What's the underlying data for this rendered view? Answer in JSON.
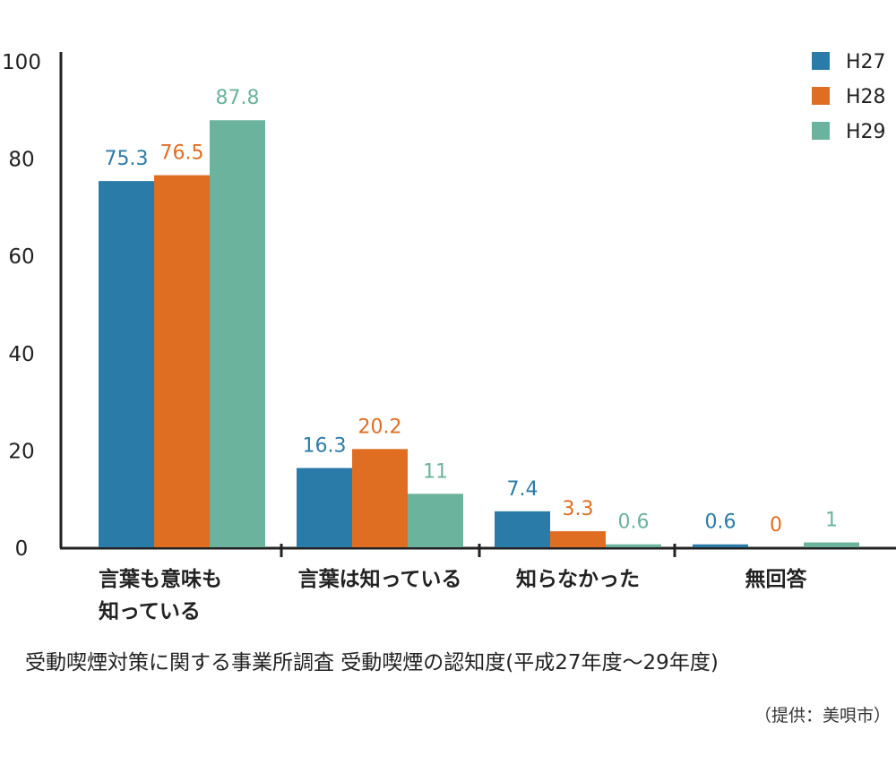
{
  "chart_data": {
    "type": "bar",
    "title": "",
    "xlabel": "",
    "ylabel": "",
    "ylim": [
      0,
      100
    ],
    "yticks": [
      0,
      20,
      40,
      60,
      80,
      100
    ],
    "categories": [
      "言葉も意味も知っている",
      "言葉は知っている",
      "知らなかった",
      "無回答"
    ],
    "category_lines": [
      [
        "言葉も意味も",
        "知っている"
      ],
      [
        "言葉は知っている"
      ],
      [
        "知らなかった"
      ],
      [
        "無回答"
      ]
    ],
    "series": [
      {
        "name": "H27",
        "color": "#2B7BA8",
        "values": [
          75.3,
          16.3,
          7.4,
          0.6
        ],
        "labels": [
          "75.3",
          "16.3",
          "7.4",
          "0.6"
        ]
      },
      {
        "name": "H28",
        "color": "#E06E22",
        "values": [
          76.5,
          20.2,
          3.3,
          0
        ],
        "labels": [
          "76.5",
          "20.2",
          "3.3",
          "0"
        ]
      },
      {
        "name": "H29",
        "color": "#6BB39C",
        "values": [
          87.8,
          11,
          0.6,
          1
        ],
        "labels": [
          "87.8",
          "11",
          "0.6",
          "1"
        ]
      }
    ],
    "legend_position": "top-right",
    "grid": false
  },
  "caption": "受動喫煙対策に関する事業所調査 受動喫煙の認知度(平成27年度〜29年度)",
  "credit": "（提供：美唄市）"
}
